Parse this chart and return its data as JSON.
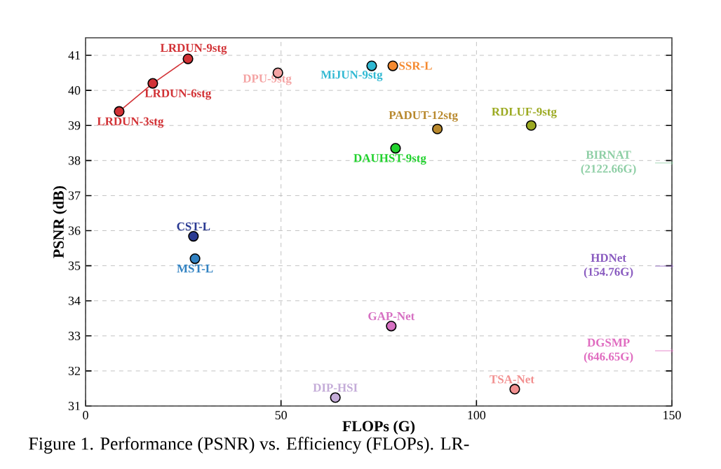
{
  "chart_data": {
    "type": "scatter",
    "xlabel": "FLOPs (G)",
    "ylabel": "PSNR (dB)",
    "xlim": [
      0,
      150
    ],
    "ylim": [
      31,
      41.5
    ],
    "xticks": [
      0,
      50,
      100,
      150
    ],
    "yticks": [
      31,
      32,
      33,
      34,
      35,
      36,
      37,
      38,
      39,
      40,
      41
    ],
    "grid": true,
    "marker": "circle",
    "series": [
      {
        "type": "line",
        "color": "#d23236",
        "x": [
          8.6,
          17.2,
          26.2
        ],
        "values": [
          39.4,
          40.2,
          40.9
        ],
        "value_labels": [
          "LRDUN-3stg",
          "LRDUN-6stg",
          "LRDUN-9stg"
        ],
        "line_style": "solid"
      },
      {
        "name": "DPU-9stg",
        "color": "#f4a3a3",
        "x": [
          49.2
        ],
        "values": [
          40.5
        ]
      },
      {
        "name": "MiJUN-9stg",
        "color": "#2fb8d2",
        "x": [
          73.2
        ],
        "values": [
          40.7
        ]
      },
      {
        "name": "SSR-L",
        "color": "#f58a30",
        "x": [
          78.6
        ],
        "values": [
          40.7
        ]
      },
      {
        "name": "PADUT-12stg",
        "color": "#b8882c",
        "x": [
          90.0
        ],
        "values": [
          38.9
        ]
      },
      {
        "name": "RDLUF-9stg",
        "color": "#9caa22",
        "x": [
          114.0
        ],
        "values": [
          39.0
        ]
      },
      {
        "name": "DAUHST-9stg",
        "color": "#22d22e",
        "x": [
          79.3
        ],
        "values": [
          38.35
        ]
      },
      {
        "name": "CST-L",
        "color": "#2a3a92",
        "x": [
          27.6
        ],
        "values": [
          35.84
        ]
      },
      {
        "name": "MST-L",
        "color": "#3182c2",
        "x": [
          28.0
        ],
        "values": [
          35.2
        ]
      },
      {
        "name": "GAP-Net",
        "color": "#d670c2",
        "x": [
          78.2
        ],
        "values": [
          33.28
        ]
      },
      {
        "name": "DIP-HSI",
        "color": "#c4acd8",
        "x": [
          63.9
        ],
        "values": [
          31.24
        ]
      },
      {
        "name": "TSA-Net",
        "color": "#f29090",
        "x": [
          109.8
        ],
        "values": [
          31.48
        ]
      }
    ],
    "annotations": [
      "BIRNAT (2122.66G)",
      "HDNet (154.76G)",
      "DGSMP (646.65G)",
      "Figure 1.  Performance (PSNR) vs.  Efficiency (FLOPs).  LR-"
    ]
  }
}
